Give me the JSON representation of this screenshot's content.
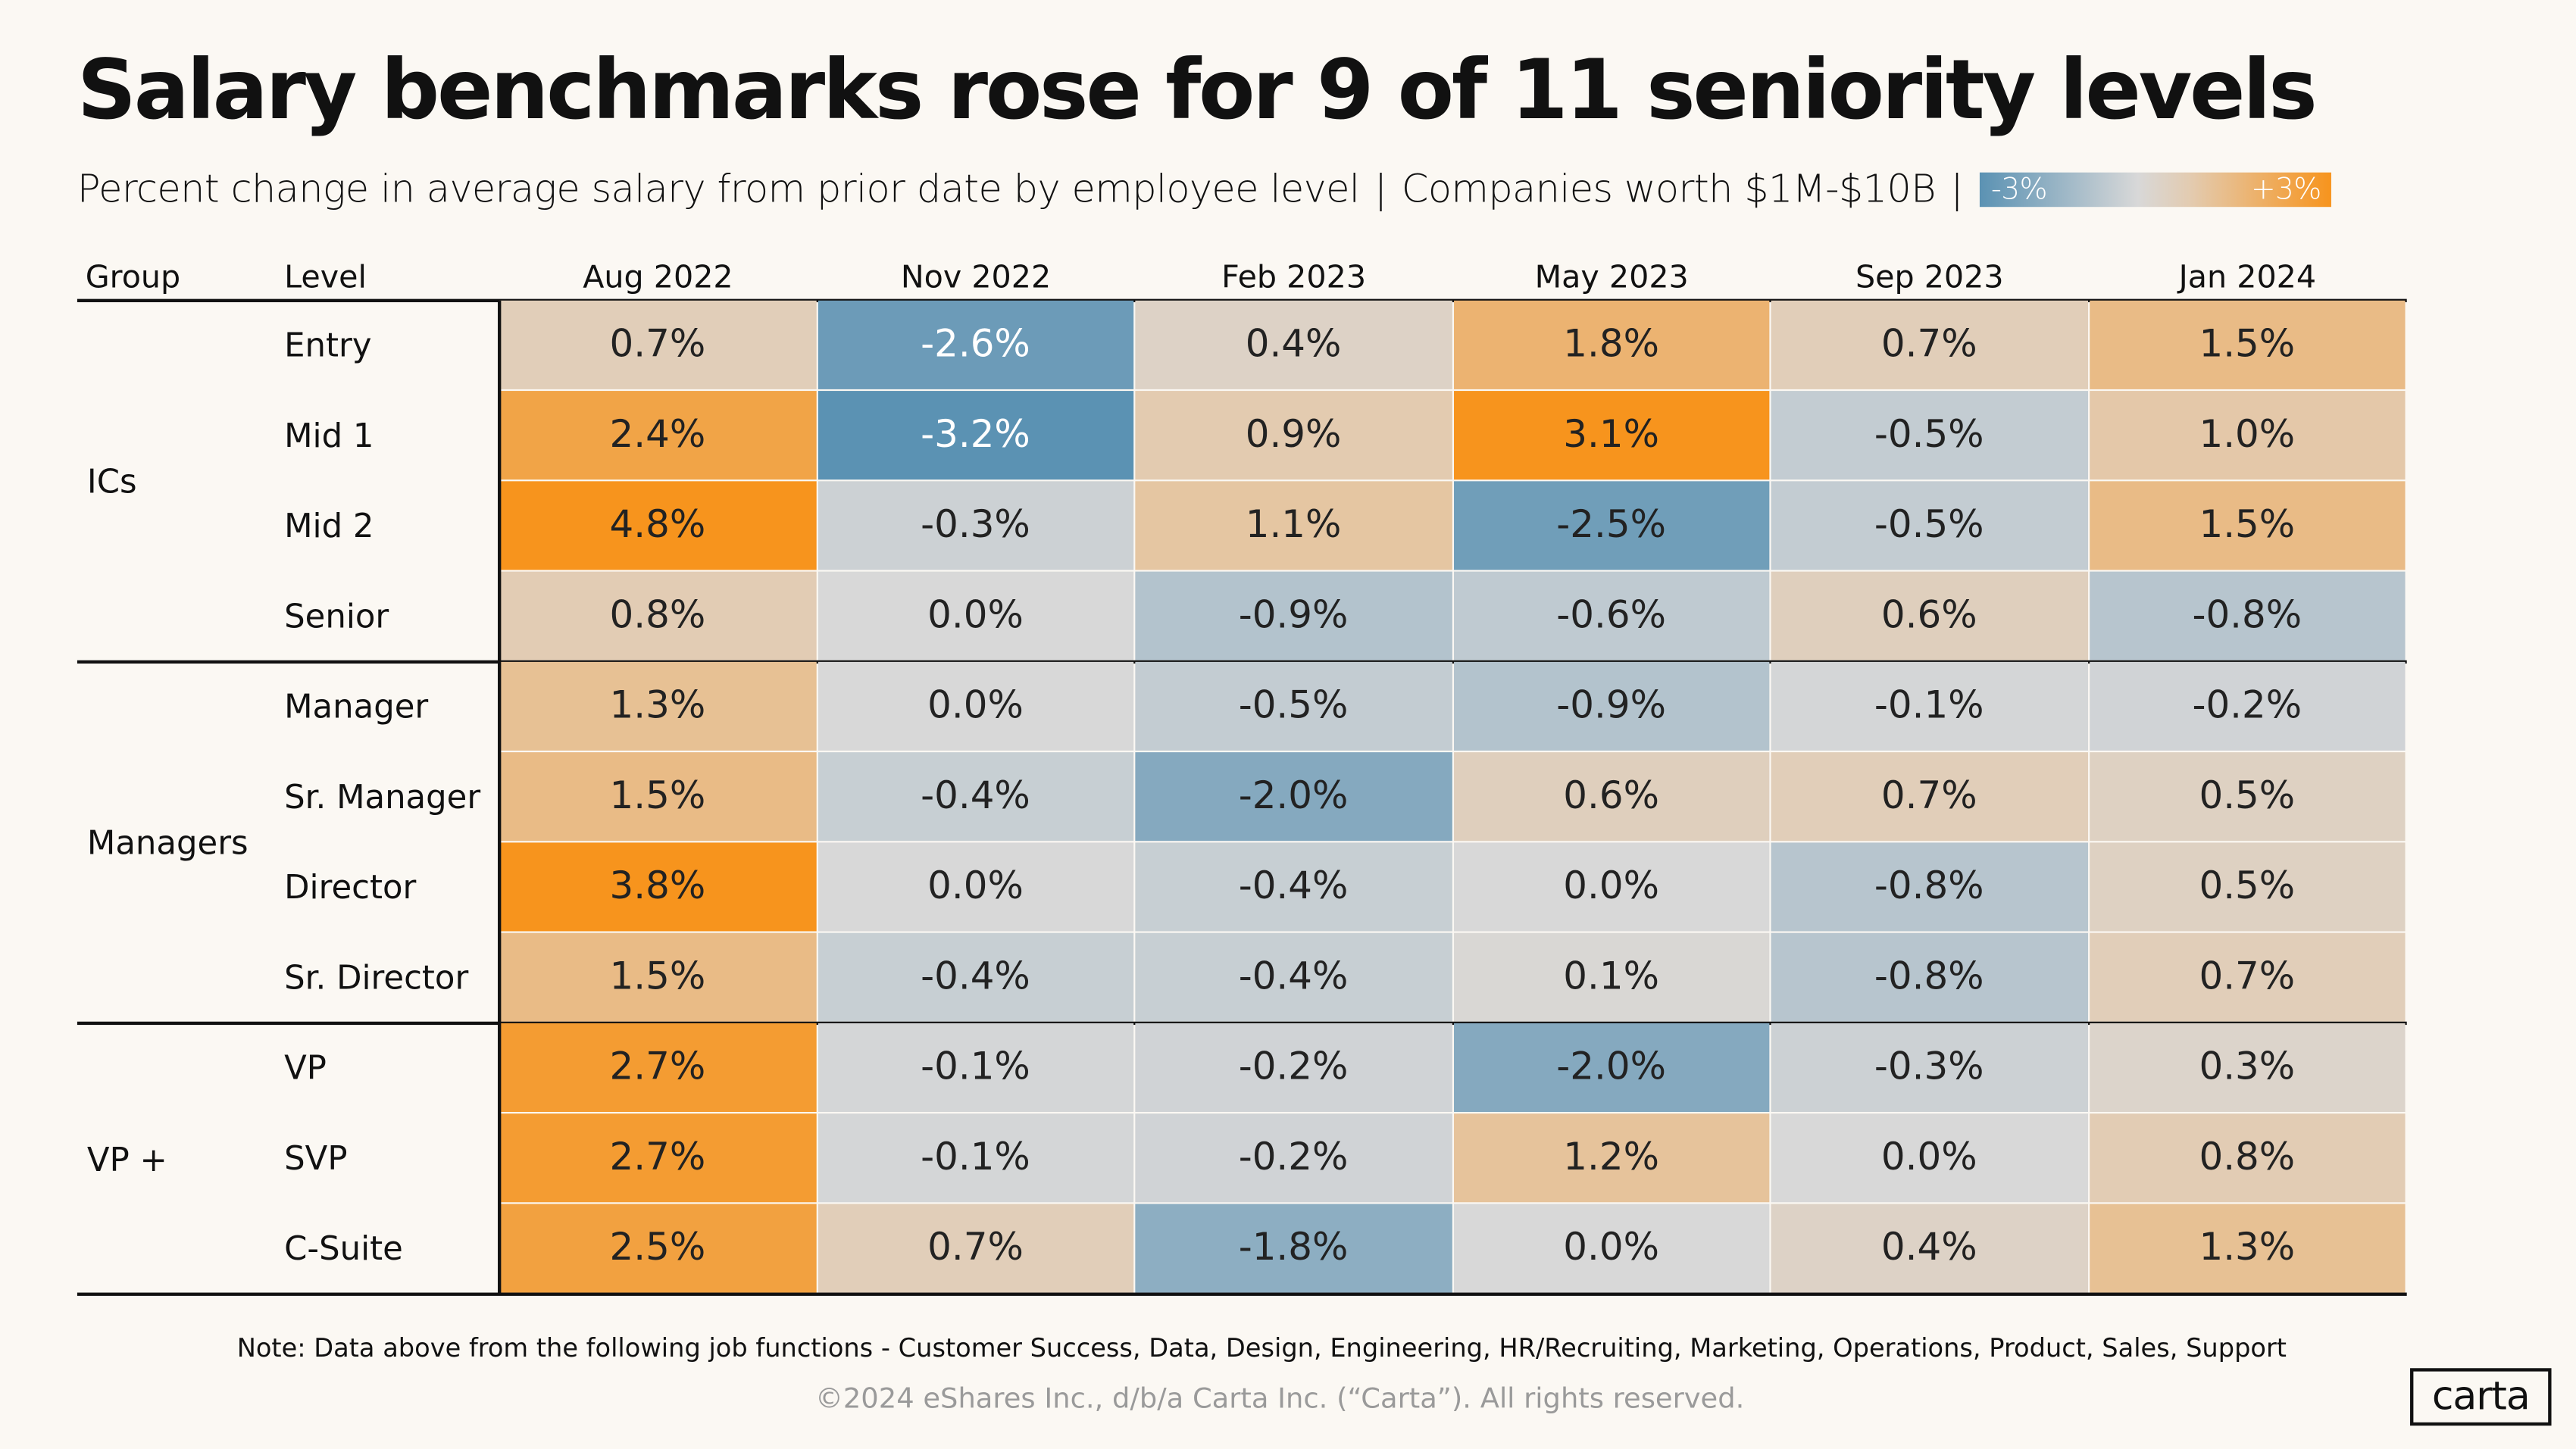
{
  "title": "Salary benchmarks rose for 9 of 11 seniority levels",
  "subtitle": "Percent change in average salary from prior date by employee level",
  "subtitle_segment": "Companies worth $1M-$10B",
  "separator": "|",
  "legend": {
    "min_label": "-3%",
    "max_label": "+3%"
  },
  "chart_data": {
    "type": "heatmap",
    "title": "Salary benchmarks rose for 9 of 11 seniority levels",
    "headers": [
      "Group",
      "Level",
      "Aug 2022",
      "Nov 2022",
      "Feb 2023",
      "May 2023",
      "Sep 2023",
      "Jan 2024"
    ],
    "columns": [
      "Aug 2022",
      "Nov 2022",
      "Feb 2023",
      "May 2023",
      "Sep 2023",
      "Jan 2024"
    ],
    "color_scale": {
      "min": -3,
      "max": 3,
      "colors": [
        "#5b92b3",
        "#d8d8d8",
        "#e3cbb0",
        "#f7941d"
      ]
    },
    "groups": [
      {
        "name": "ICs",
        "rows": [
          {
            "level": "Entry",
            "values": [
              0.7,
              -2.6,
              0.4,
              1.8,
              0.7,
              1.5
            ]
          },
          {
            "level": "Mid 1",
            "values": [
              2.4,
              -3.2,
              0.9,
              3.1,
              -0.5,
              1.0
            ]
          },
          {
            "level": "Mid 2",
            "values": [
              4.8,
              -0.3,
              1.1,
              -2.5,
              -0.5,
              1.5
            ]
          },
          {
            "level": "Senior",
            "values": [
              0.8,
              0.0,
              -0.9,
              -0.6,
              0.6,
              -0.8
            ]
          }
        ]
      },
      {
        "name": "Managers",
        "rows": [
          {
            "level": "Manager",
            "values": [
              1.3,
              0.0,
              -0.5,
              -0.9,
              -0.1,
              -0.2
            ]
          },
          {
            "level": "Sr. Manager",
            "values": [
              1.5,
              -0.4,
              -2.0,
              0.6,
              0.7,
              0.5
            ]
          },
          {
            "level": "Director",
            "values": [
              3.8,
              0.0,
              -0.4,
              0.0,
              -0.8,
              0.5
            ]
          },
          {
            "level": "Sr. Director",
            "values": [
              1.5,
              -0.4,
              -0.4,
              0.1,
              -0.8,
              0.7
            ]
          }
        ]
      },
      {
        "name": "VP +",
        "rows": [
          {
            "level": "VP",
            "values": [
              2.7,
              -0.1,
              -0.2,
              -2.0,
              -0.3,
              0.3
            ]
          },
          {
            "level": "SVP",
            "values": [
              2.7,
              -0.1,
              -0.2,
              1.2,
              0.0,
              0.8
            ]
          },
          {
            "level": "C-Suite",
            "values": [
              2.5,
              0.7,
              -1.8,
              0.0,
              0.4,
              1.3
            ]
          }
        ]
      }
    ]
  },
  "note": "Note:  Data above from the following job functions - Customer Success, Data, Design, Engineering, HR/Recruiting, Marketing, Operations, Product,  Sales, Support",
  "copyright": "©2024 eShares Inc., d/b/a Carta Inc. (“Carta”). All rights reserved.",
  "logo": "carta"
}
